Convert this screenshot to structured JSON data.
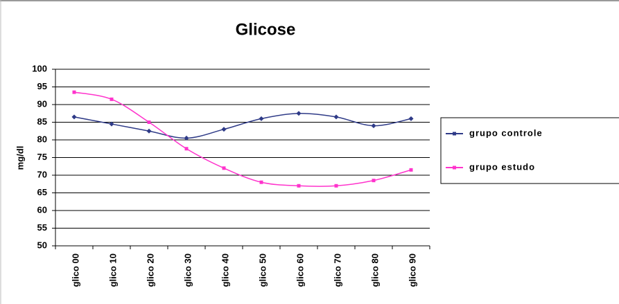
{
  "chart_data": {
    "type": "line",
    "title": "Glicose",
    "y_label": "mg/dl",
    "categories": [
      "glico 00",
      "glico 10",
      "glico 20",
      "glico 30",
      "glico 40",
      "glico 50",
      "glico 60",
      "glico 70",
      "glico 80",
      "glico 90"
    ],
    "series": [
      {
        "name": "grupo controle",
        "color": "#2e3a87",
        "values": [
          86.5,
          84.5,
          82.5,
          80.5,
          83,
          86,
          87.5,
          86.5,
          84,
          86
        ]
      },
      {
        "name": "grupo estudo",
        "color": "#ff33cc",
        "values": [
          93.5,
          91.5,
          85,
          77.5,
          72,
          68,
          67,
          67,
          68.5,
          71.5
        ]
      }
    ],
    "ylim": [
      50,
      100
    ],
    "yticks": [
      50,
      55,
      60,
      65,
      70,
      75,
      80,
      85,
      90,
      95,
      100
    ],
    "grid": true,
    "smooth": true,
    "legend": "right"
  }
}
